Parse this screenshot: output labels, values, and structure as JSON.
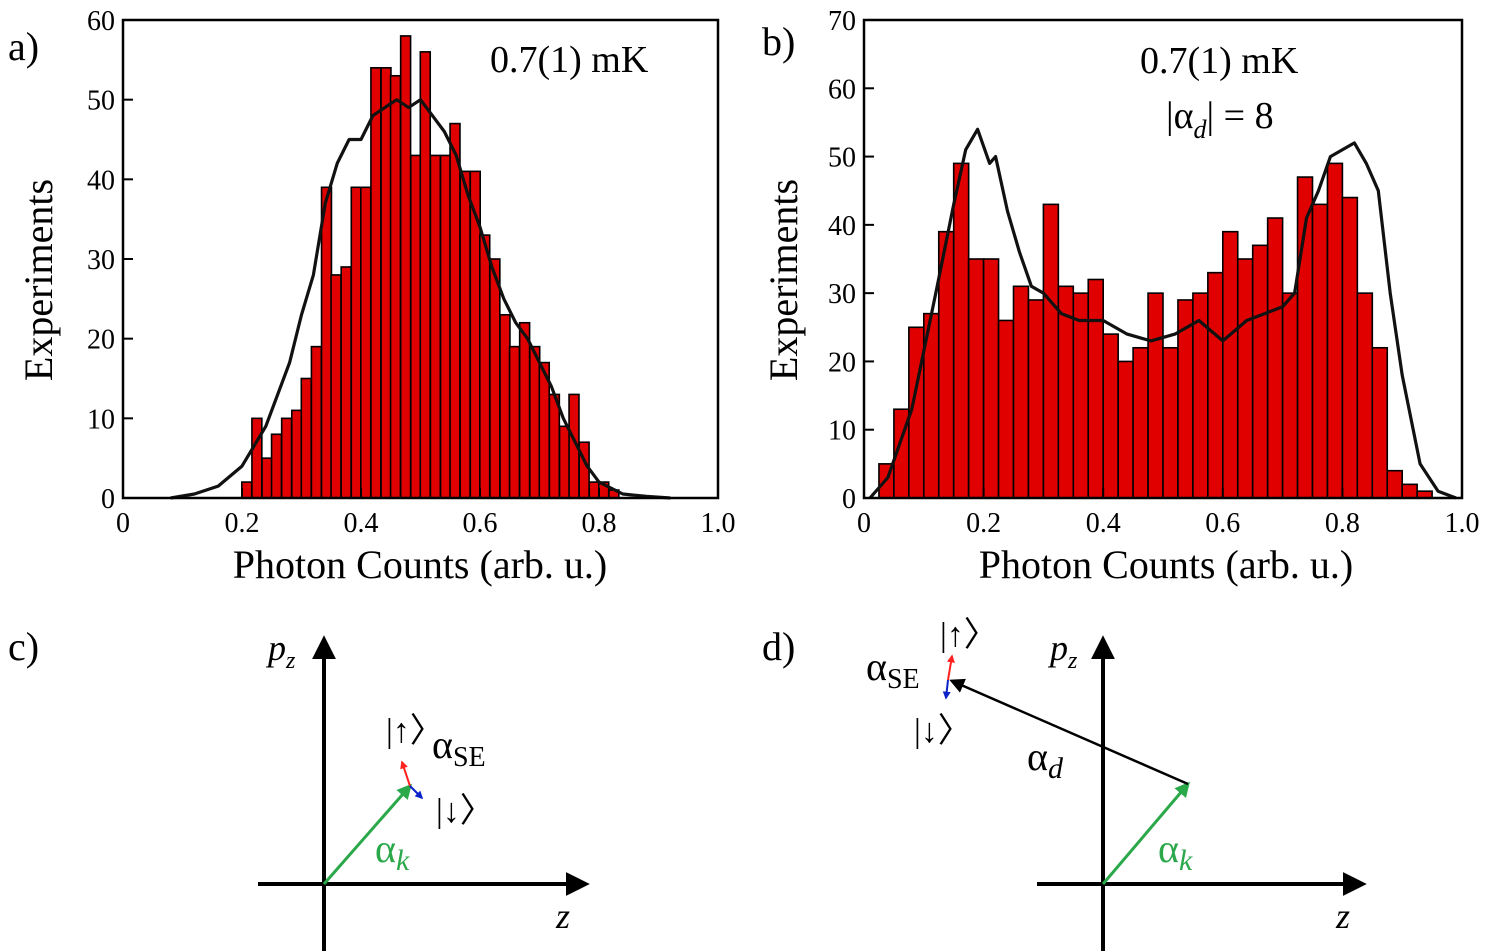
{
  "panel_labels": {
    "a": "a)",
    "b": "b)",
    "c": "c)",
    "d": "d)"
  },
  "colors": {
    "bar": "#e00000",
    "fit": "#111111",
    "green": "#2aa84a",
    "red": "#ff2020",
    "blue": "#5b6cf0",
    "darkblue": "#0a22c8"
  },
  "chart_data": [
    {
      "type": "bar",
      "panel": "a",
      "annotation": "0.7(1) mK",
      "xlabel": "Photon Counts (arb. u.)",
      "ylabel": "Experiments",
      "xlim": [
        0,
        1.0
      ],
      "ylim": [
        0,
        60
      ],
      "xticks": [
        0,
        0.2,
        0.4,
        0.6,
        0.8,
        1.0
      ],
      "xtick_labels": [
        "0",
        "0.2",
        "0.4",
        "0.6",
        "0.8",
        "1.0"
      ],
      "yticks": [
        0,
        10,
        20,
        30,
        40,
        50,
        60
      ],
      "bin_width": 0.01667,
      "x": [
        0.208,
        0.225,
        0.242,
        0.258,
        0.275,
        0.292,
        0.308,
        0.325,
        0.342,
        0.358,
        0.375,
        0.392,
        0.408,
        0.425,
        0.442,
        0.458,
        0.475,
        0.492,
        0.508,
        0.525,
        0.542,
        0.558,
        0.575,
        0.592,
        0.608,
        0.625,
        0.642,
        0.658,
        0.675,
        0.692,
        0.708,
        0.725,
        0.742,
        0.758,
        0.775,
        0.792,
        0.808,
        0.825
      ],
      "values": [
        2,
        10,
        5,
        8,
        10,
        11,
        15,
        19,
        39,
        28,
        29,
        39,
        39,
        54,
        54,
        53,
        58,
        43,
        56,
        43,
        43,
        47,
        41,
        41,
        33,
        30,
        23,
        19,
        22,
        19,
        17,
        13,
        9,
        13,
        7,
        2,
        2,
        1
      ],
      "fit": {
        "x": [
          0.08,
          0.12,
          0.16,
          0.2,
          0.24,
          0.28,
          0.3,
          0.32,
          0.34,
          0.36,
          0.38,
          0.4,
          0.42,
          0.44,
          0.46,
          0.48,
          0.5,
          0.52,
          0.54,
          0.56,
          0.58,
          0.6,
          0.62,
          0.64,
          0.66,
          0.68,
          0.7,
          0.72,
          0.74,
          0.76,
          0.78,
          0.8,
          0.84,
          0.88,
          0.92
        ],
        "y": [
          0,
          0.5,
          1.5,
          4,
          9,
          17,
          23,
          28,
          37,
          42,
          45,
          45,
          48,
          49,
          50,
          49,
          50,
          48,
          46,
          43,
          38,
          34,
          29,
          25,
          22,
          20,
          17,
          14,
          10,
          7,
          4,
          2,
          0.5,
          0.2,
          0
        ]
      }
    },
    {
      "type": "bar",
      "panel": "b",
      "annotation": "0.7(1) mK",
      "annotation2_prefix": "|α",
      "annotation2_sub": "d",
      "annotation2_suffix": "| = 8",
      "xlabel": "Photon Counts  (arb. u.)",
      "ylabel": "Experiments",
      "xlim": [
        0,
        1.0
      ],
      "ylim": [
        0,
        70
      ],
      "xticks": [
        0,
        0.2,
        0.4,
        0.6,
        0.8,
        1.0
      ],
      "xtick_labels": [
        "0",
        "0.2",
        "0.4",
        "0.6",
        "0.8",
        "1.0"
      ],
      "yticks": [
        0,
        10,
        20,
        30,
        40,
        50,
        60,
        70
      ],
      "bin_width": 0.025,
      "x": [
        0.0375,
        0.0625,
        0.0875,
        0.1125,
        0.1375,
        0.1625,
        0.1875,
        0.2125,
        0.2375,
        0.2625,
        0.2875,
        0.3125,
        0.3375,
        0.3625,
        0.3875,
        0.4125,
        0.4375,
        0.4625,
        0.4875,
        0.5125,
        0.5375,
        0.5625,
        0.5875,
        0.6125,
        0.6375,
        0.6625,
        0.6875,
        0.7125,
        0.7375,
        0.7625,
        0.7875,
        0.8125,
        0.8375,
        0.8625,
        0.8875,
        0.9125,
        0.9375,
        0.9625,
        0.9875
      ],
      "values": [
        5,
        13,
        25,
        27,
        39,
        49,
        35,
        35,
        26,
        31,
        29,
        43,
        31,
        30,
        32,
        24,
        20,
        22,
        30,
        22,
        29,
        30,
        33,
        39,
        35,
        37,
        41,
        30,
        47,
        43,
        49,
        44,
        30,
        22,
        4,
        2,
        1,
        0,
        0
      ],
      "fit": {
        "x": [
          0.01,
          0.04,
          0.08,
          0.12,
          0.15,
          0.17,
          0.19,
          0.21,
          0.22,
          0.24,
          0.26,
          0.28,
          0.3,
          0.33,
          0.36,
          0.4,
          0.44,
          0.48,
          0.52,
          0.56,
          0.6,
          0.64,
          0.67,
          0.7,
          0.72,
          0.74,
          0.76,
          0.78,
          0.8,
          0.82,
          0.84,
          0.86,
          0.88,
          0.9,
          0.93,
          0.96,
          0.99
        ],
        "y": [
          0,
          3,
          13,
          30,
          43,
          51,
          54,
          49,
          50,
          42,
          36,
          31,
          30,
          27,
          26,
          26,
          24,
          23,
          24,
          26,
          23,
          26,
          27,
          28,
          30,
          41,
          45,
          50,
          51,
          52,
          49,
          45,
          30,
          18,
          5,
          1,
          0
        ]
      }
    }
  ],
  "diagrams": {
    "c": {
      "pz_main": "p",
      "pz_sub": "z",
      "z_label": "z",
      "ak_main": "α",
      "ak_sub": "k",
      "ase_main": "α",
      "ase_sub": "SE",
      "ket_up": "|↑〉",
      "ket_down": "|↓〉"
    },
    "d": {
      "pz_main": "p",
      "pz_sub": "z",
      "z_label": "z",
      "ak_main": "α",
      "ak_sub": "k",
      "ad_main": "α",
      "ad_sub": "d",
      "ase_main": "α",
      "ase_sub": "SE",
      "ket_up": "|↑〉",
      "ket_down": "|↓〉"
    }
  }
}
